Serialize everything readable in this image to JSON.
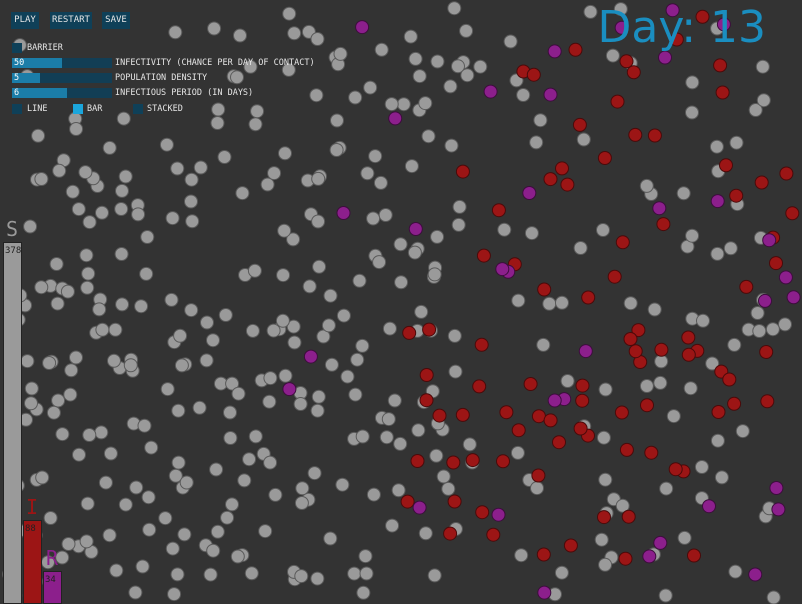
{
  "toolbar": {
    "play_label": "PLAY",
    "restart_label": "RESTART",
    "save_label": "SAVE"
  },
  "controls": {
    "barrier": {
      "label": "BARRIER",
      "checked": false
    },
    "infectivity": {
      "label": "INFECTIVITY (CHANCE PER DAY OF CONTACT)",
      "value": "50",
      "fraction": 0.5
    },
    "density": {
      "label": "POPULATION DENSITY",
      "value": "5",
      "fraction": 0.28
    },
    "period": {
      "label": "INFECTIOUS PERIOD (IN DAYS)",
      "value": "6",
      "fraction": 0.55
    },
    "chart_modes": [
      {
        "label": "LINE",
        "active": false
      },
      {
        "label": "BAR",
        "active": true
      },
      {
        "label": "STACKED",
        "active": false
      }
    ]
  },
  "day": {
    "text": "Day: 13"
  },
  "colors": {
    "background": "#333333",
    "susceptible": "#9a9a9a",
    "infected": "#9c1515",
    "recovered": "#8c1f8c",
    "accent": "#1a8ec0"
  },
  "bar_chart": {
    "population_total": 500,
    "bars": [
      {
        "letter": "S",
        "count": "378",
        "value": 378,
        "color": "#9a9a9a"
      },
      {
        "letter": "I",
        "count": "88",
        "value": 88,
        "color": "#9c1515"
      },
      {
        "letter": "R",
        "count": "34",
        "value": 34,
        "color": "#8c1f8c"
      }
    ]
  }
}
